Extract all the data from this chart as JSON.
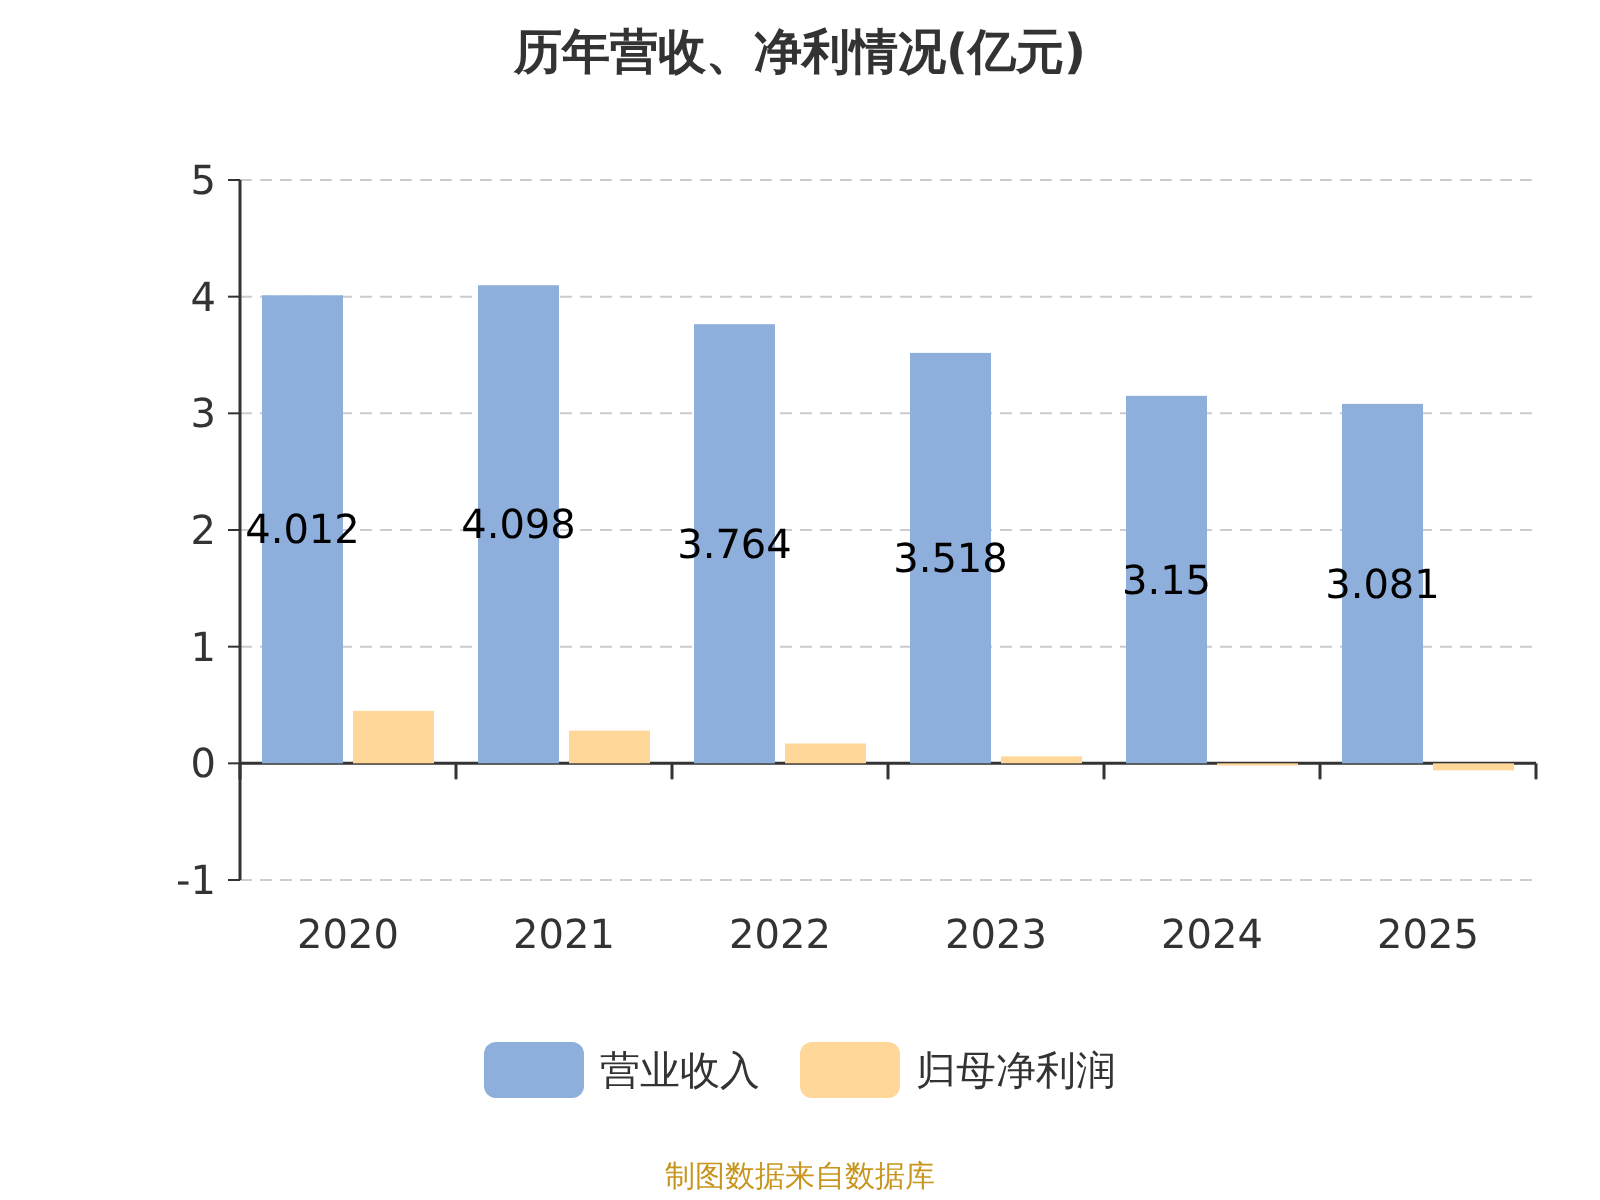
{
  "chart_data": {
    "type": "bar",
    "title": "历年营收、净利情况(亿元)",
    "categories": [
      "2020",
      "2021",
      "2022",
      "2023",
      "2024",
      "2025"
    ],
    "series": [
      {
        "name": "营业收入",
        "color": "#8eaedb",
        "values": [
          4.012,
          4.098,
          3.764,
          3.518,
          3.15,
          3.081
        ],
        "value_labels": [
          "4.012",
          "4.098",
          "3.764",
          "3.518",
          "3.15",
          "3.081"
        ]
      },
      {
        "name": "归母净利润",
        "color": "#ffd899",
        "values": [
          0.45,
          0.28,
          0.17,
          0.06,
          -0.02,
          -0.06
        ]
      }
    ],
    "ylim": [
      -1,
      5
    ],
    "yticks": [
      -1,
      0,
      1,
      2,
      3,
      4,
      5
    ],
    "grid": "y",
    "legend": "bottom",
    "annotations": [
      "制图数据来自数据库"
    ]
  }
}
